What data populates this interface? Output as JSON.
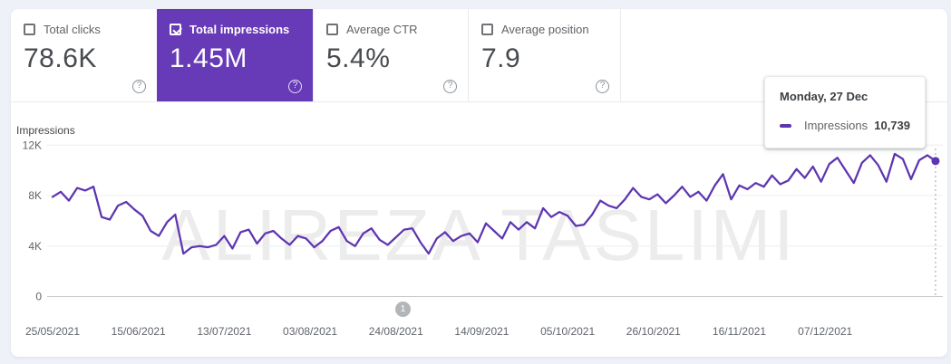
{
  "colors": {
    "accent_purple": "#673ab7",
    "line_purple": "#5e35b1",
    "grid_line": "#eceef0",
    "zero_line": "#c6c8cb",
    "tick_label": "#5f6368"
  },
  "icons": {
    "help_glyph": "?"
  },
  "cards": [
    {
      "id": "total-clicks",
      "label": "Total clicks",
      "value": "78.6K",
      "checked": false,
      "selected": false
    },
    {
      "id": "total-impressions",
      "label": "Total impressions",
      "value": "1.45M",
      "checked": true,
      "selected": true
    },
    {
      "id": "average-ctr",
      "label": "Average CTR",
      "value": "5.4%",
      "checked": false,
      "selected": false
    },
    {
      "id": "average-position",
      "label": "Average position",
      "value": "7.9",
      "checked": false,
      "selected": false
    }
  ],
  "tooltip": {
    "title": "Monday, 27 Dec",
    "series_label": "Impressions",
    "value": "10,739"
  },
  "watermark": "ALIREZA TASLIMI",
  "pagination": {
    "label": "1"
  },
  "chart_data": {
    "type": "line",
    "title": "Impressions",
    "legend_position": "none",
    "grid": "horizontal",
    "ylim": [
      0,
      14160
    ],
    "y_ticks": [
      {
        "value": 12000,
        "label": "12K"
      },
      {
        "value": 8000,
        "label": "8K"
      },
      {
        "value": 4000,
        "label": "4K"
      },
      {
        "value": 0,
        "label": "0"
      }
    ],
    "x_ticks": [
      {
        "day": 0,
        "label": "25/05/2021"
      },
      {
        "day": 21,
        "label": "15/06/2021"
      },
      {
        "day": 42,
        "label": "13/07/2021"
      },
      {
        "day": 63,
        "label": "03/08/2021"
      },
      {
        "day": 84,
        "label": "24/08/2021"
      },
      {
        "day": 105,
        "label": "14/09/2021"
      },
      {
        "day": 126,
        "label": "05/10/2021"
      },
      {
        "day": 147,
        "label": "26/10/2021"
      },
      {
        "day": 168,
        "label": "16/11/2021"
      },
      {
        "day": 189,
        "label": "07/12/2021"
      }
    ],
    "series": [
      {
        "name": "Impressions",
        "color": "#5e35b1",
        "x_start_day": 0,
        "x_step_days": 2,
        "values": [
          7900,
          8300,
          7600,
          8600,
          8400,
          8700,
          6300,
          6100,
          7200,
          7500,
          6900,
          6400,
          5200,
          4800,
          5900,
          6500,
          3400,
          3900,
          4000,
          3900,
          4100,
          4800,
          3800,
          5100,
          5300,
          4200,
          5000,
          5200,
          4600,
          4100,
          4800,
          4600,
          3900,
          4400,
          5200,
          5500,
          4400,
          4000,
          5000,
          5400,
          4500,
          4100,
          4700,
          5300,
          5400,
          4300,
          3400,
          4600,
          5100,
          4400,
          4800,
          5000,
          4300,
          5800,
          5200,
          4600,
          5900,
          5300,
          5900,
          5400,
          7000,
          6300,
          6700,
          6400,
          5600,
          5700,
          6500,
          7600,
          7200,
          7000,
          7700,
          8600,
          7900,
          7700,
          8100,
          7400,
          8000,
          8700,
          7900,
          8300,
          7600,
          8800,
          9700,
          7700,
          8800,
          8500,
          9000,
          8700,
          9600,
          8900,
          9200,
          10100,
          9400,
          10300,
          9100,
          10500,
          11000,
          10000,
          9000,
          10600,
          11200,
          10400,
          9100,
          11300,
          10900,
          9300,
          10800,
          11200,
          10739
        ]
      }
    ],
    "highlight": {
      "day": 216,
      "value": 10739,
      "date_label": "Monday, 27 Dec",
      "display_value": "10,739"
    }
  }
}
